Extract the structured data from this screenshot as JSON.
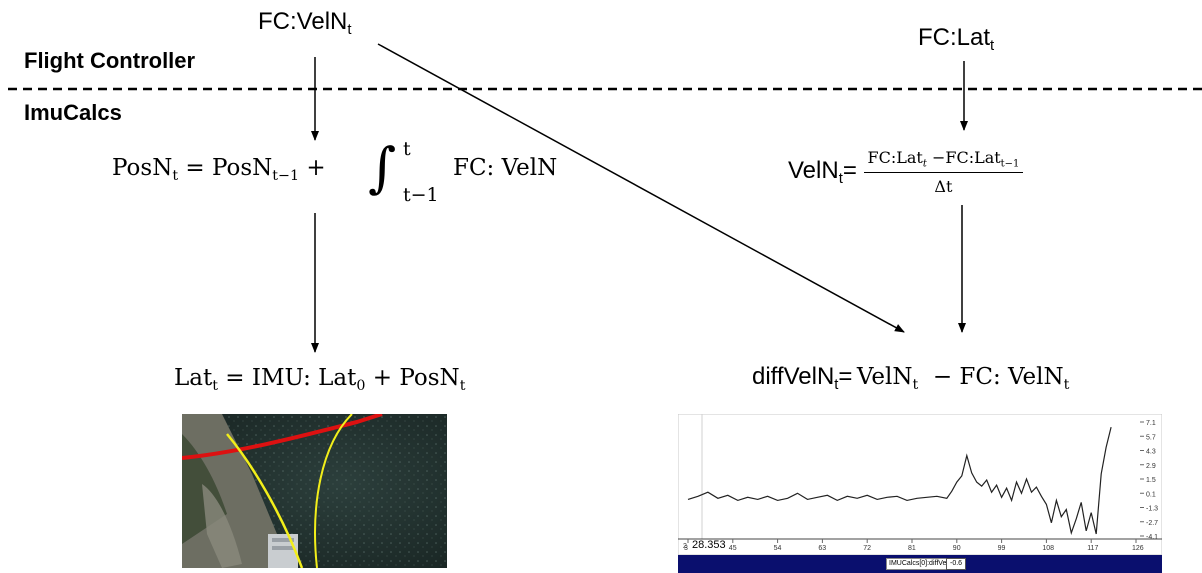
{
  "headers": {
    "flight_controller": "Flight Controller",
    "imucalcs": "ImuCalcs"
  },
  "inputs": {
    "fc_veln": {
      "base": "FC:VelN",
      "sub": "t"
    },
    "fc_lat": {
      "base": "FC:Lat",
      "sub": "t"
    }
  },
  "formulas": {
    "posn": {
      "lhs": "PosN",
      "lhs_sub": "t",
      "eq": "=",
      "term1": "PosN",
      "term1_sub": "t−1",
      "plus": "+",
      "int_upper": "t",
      "int_lower": "t−1",
      "integrand": "FC: VelN"
    },
    "veln": {
      "lhs": "VelN",
      "lhs_sub": "t",
      "eq": "=",
      "num_a": "FC:Lat",
      "num_a_sub": "t",
      "num_minus": "−FC:Lat",
      "num_b_sub": "t−1",
      "den": "Δt"
    },
    "lat": {
      "lhs": "Lat",
      "lhs_sub": "t",
      "eq": "=",
      "term1": "IMU: Lat",
      "term1_sub": "0",
      "plus": "+",
      "term2": "PosN",
      "term2_sub": "t"
    },
    "diffveln": {
      "lhs": "diffVelN",
      "lhs_sub": "t",
      "eq": "=",
      "term1": "VelN",
      "term1_sub": "t",
      "minus": "− FC: VelN",
      "term2_sub": "t"
    }
  },
  "colors": {
    "red_track": "#dd1111",
    "yellow_track": "#f2ee1a",
    "chart_footer": "#0a0f6e"
  },
  "chart_data": {
    "type": "line",
    "title": "",
    "readout": "28.353",
    "x_start_label": "2",
    "x_ticks": [
      "3",
      "45",
      "54",
      "63",
      "72",
      "81",
      "90",
      "99",
      "108",
      "117",
      "126"
    ],
    "y_ticks": [
      "7.1",
      "5.7",
      "4.3",
      "2.9",
      "1.5",
      "0.1",
      "-1.3",
      "-2.7",
      "-4.1"
    ],
    "ylim": [
      -4.1,
      7.1
    ],
    "xlim": [
      36,
      126
    ],
    "legend_box": "IMUCalcs[0]:diffVelN:C",
    "current_value": "-0.6",
    "series": [
      {
        "x": [
          36,
          38,
          40,
          42,
          44,
          46,
          48,
          50,
          52,
          54,
          56,
          58,
          60,
          62,
          64,
          66,
          68,
          70,
          72,
          74,
          76,
          78,
          80,
          82,
          84,
          86,
          88,
          89,
          90,
          91,
          92,
          93,
          94,
          95,
          96,
          97,
          98,
          99,
          100,
          101,
          102,
          103,
          104,
          105,
          106,
          107,
          108,
          109,
          110,
          111,
          112,
          113,
          114,
          115,
          116,
          117,
          118,
          119,
          120,
          121
        ],
        "y": [
          -0.5,
          -0.2,
          0.2,
          -0.4,
          -0.1,
          -0.6,
          -0.3,
          -0.5,
          -0.2,
          -0.6,
          -0.4,
          0.1,
          -0.5,
          -0.3,
          -0.1,
          -0.6,
          -0.2,
          -0.4,
          -0.1,
          -0.5,
          -0.3,
          -0.2,
          -0.6,
          -0.4,
          -0.3,
          -0.2,
          -0.4,
          0.3,
          1.2,
          1.8,
          3.8,
          2.1,
          1.2,
          0.8,
          1.4,
          0.2,
          0.9,
          -0.3,
          0.6,
          -0.6,
          1.2,
          0.1,
          1.5,
          0.2,
          0.7,
          -0.2,
          -1.0,
          -2.8,
          -0.6,
          -2.2,
          -1.5,
          -3.8,
          -2.4,
          -0.8,
          -3.6,
          -1.8,
          -3.9,
          2.0,
          4.6,
          6.6
        ]
      }
    ]
  }
}
